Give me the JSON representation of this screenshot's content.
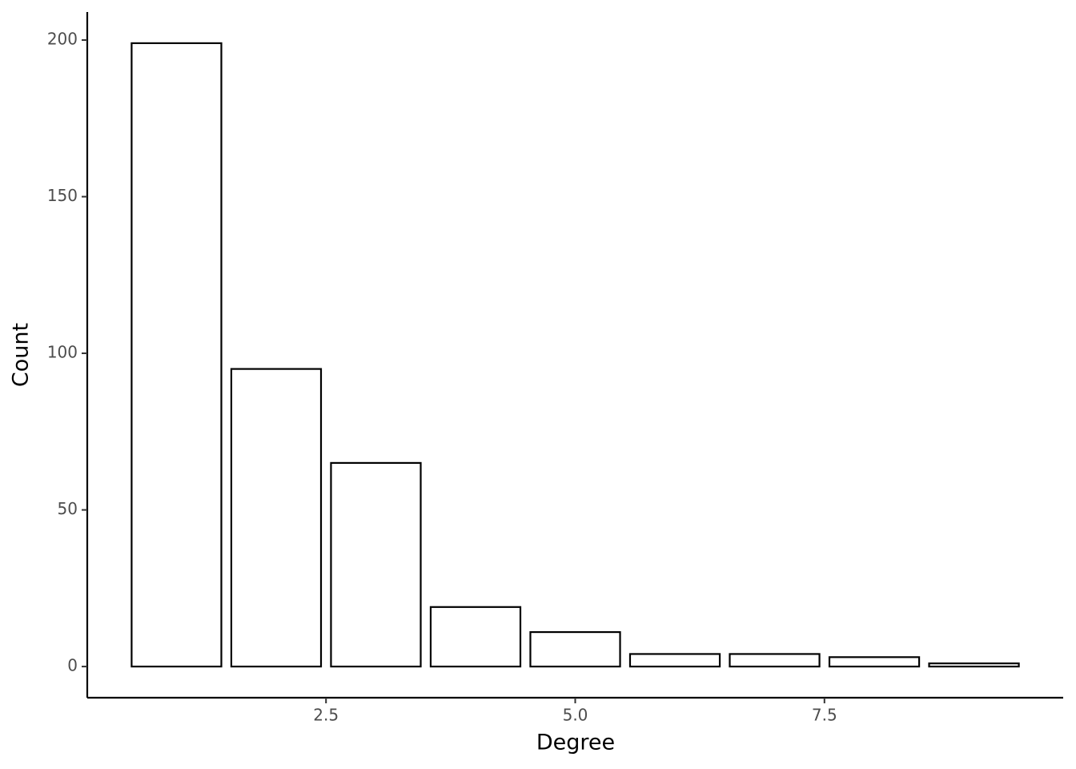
{
  "chart_data": {
    "type": "bar",
    "x_label": "Degree",
    "y_label": "Count",
    "x": [
      1,
      2,
      3,
      4,
      5,
      6,
      7,
      8,
      9
    ],
    "values": [
      199,
      95,
      65,
      19,
      11,
      4,
      4,
      3,
      1
    ],
    "color": "#ffffff",
    "edge_color": "#000000",
    "xlim": [
      0.105,
      9.895
    ],
    "xticks": [
      2.5,
      {
        "value": 5,
        "label": "5.0"
      },
      7.5
    ],
    "ylim": [
      -9.95,
      208.95
    ],
    "yticks": [
      0,
      50,
      100,
      150,
      200
    ],
    "grid": false
  }
}
